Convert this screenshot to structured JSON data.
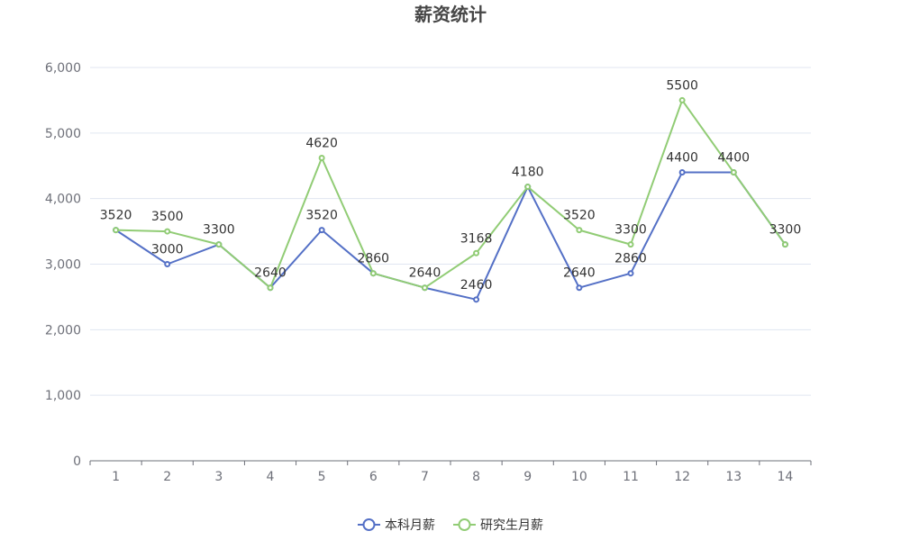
{
  "chart_data": {
    "type": "line",
    "title": "薪资统计",
    "xlabel": "",
    "ylabel": "",
    "categories": [
      "1",
      "2",
      "3",
      "4",
      "5",
      "6",
      "7",
      "8",
      "9",
      "10",
      "11",
      "12",
      "13",
      "14"
    ],
    "ylim": [
      0,
      6000
    ],
    "yticks": [
      0,
      1000,
      2000,
      3000,
      4000,
      5000,
      6000
    ],
    "ytick_labels": [
      "0",
      "1,000",
      "2,000",
      "3,000",
      "4,000",
      "5,000",
      "6,000"
    ],
    "grid": true,
    "legend_position": "bottom-center",
    "series": [
      {
        "name": "本科月薪",
        "color": "#5470c6",
        "values": [
          3520,
          3000,
          3300,
          2640,
          3520,
          2860,
          2640,
          2460,
          4180,
          2640,
          2860,
          4400,
          4400,
          3300
        ],
        "labels": [
          "",
          "3000",
          "",
          "2640",
          "3520",
          "2860",
          "",
          "2460",
          "",
          "2640",
          "2860",
          "4400",
          "",
          ""
        ]
      },
      {
        "name": "研究生月薪",
        "color": "#91cc75",
        "values": [
          3520,
          3500,
          3300,
          2640,
          4620,
          2860,
          2640,
          3168,
          4180,
          3520,
          3300,
          5500,
          4400,
          3300
        ],
        "labels": [
          "3520",
          "3500",
          "3300",
          "",
          "4620",
          "",
          "2640",
          "3168",
          "4180",
          "3520",
          "3300",
          "5500",
          "4400",
          "3300"
        ]
      }
    ]
  }
}
